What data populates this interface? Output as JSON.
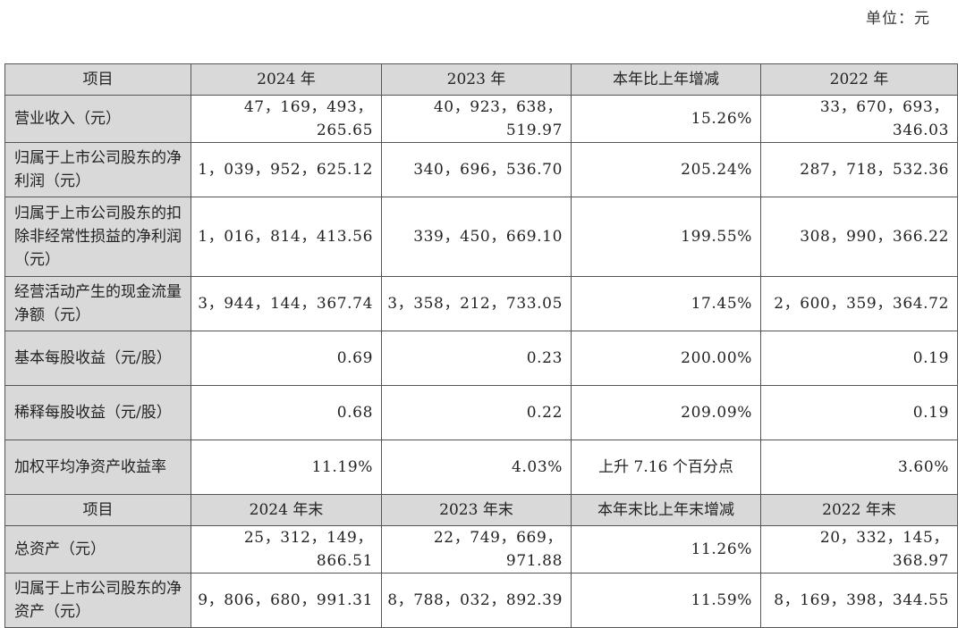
{
  "unit_label": "单位：元",
  "header1": [
    "项目",
    "2024 年",
    "2023 年",
    "本年比上年增减",
    "2022 年"
  ],
  "header2": [
    "项目",
    "2024 年末",
    "2023 年末",
    "本年末比上年末增减",
    "2022 年末"
  ],
  "rows_income": [
    {
      "label": "营业收入（元）",
      "v2024": "47，169，493，265.65",
      "v2023": "40，923，638，519.97",
      "change": "15.26%",
      "v2022": "33，670，693，346.03"
    },
    {
      "label": "归属于上市公司股东的净利润（元）",
      "v2024": "1，039，952，625.12",
      "v2023": "340，696，536.70",
      "change": "205.24%",
      "v2022": "287，718，532.36"
    },
    {
      "label": "归属于上市公司股东的扣除非经常性损益的净利润（元）",
      "v2024": "1，016，814，413.56",
      "v2023": "339，450，669.10",
      "change": "199.55%",
      "v2022": "308，990，366.22"
    },
    {
      "label": "经营活动产生的现金流量净额（元）",
      "v2024": "3，944，144，367.74",
      "v2023": "3，358，212，733.05",
      "change": "17.45%",
      "v2022": "2，600，359，364.72"
    },
    {
      "label": "基本每股收益（元/股）",
      "v2024": "0.69",
      "v2023": "0.23",
      "change": "200.00%",
      "v2022": "0.19"
    },
    {
      "label": "稀释每股收益（元/股）",
      "v2024": "0.68",
      "v2023": "0.22",
      "change": "209.09%",
      "v2022": "0.19"
    },
    {
      "label": "加权平均净资产收益率",
      "v2024": "11.19%",
      "v2023": "4.03%",
      "change": "上升 7.16 个百分点",
      "v2022": "3.60%"
    }
  ],
  "rows_balance": [
    {
      "label": "总资产（元）",
      "v2024": "25，312，149，866.51",
      "v2023": "22，749，669，971.88",
      "change": "11.26%",
      "v2022": "20，332，145，368.97"
    },
    {
      "label": "归属于上市公司股东的净资产（元）",
      "v2024": "9，806，680，991.31",
      "v2023": "8，788，032，892.39",
      "change": "11.59%",
      "v2022": "8，169，398，344.55"
    }
  ]
}
